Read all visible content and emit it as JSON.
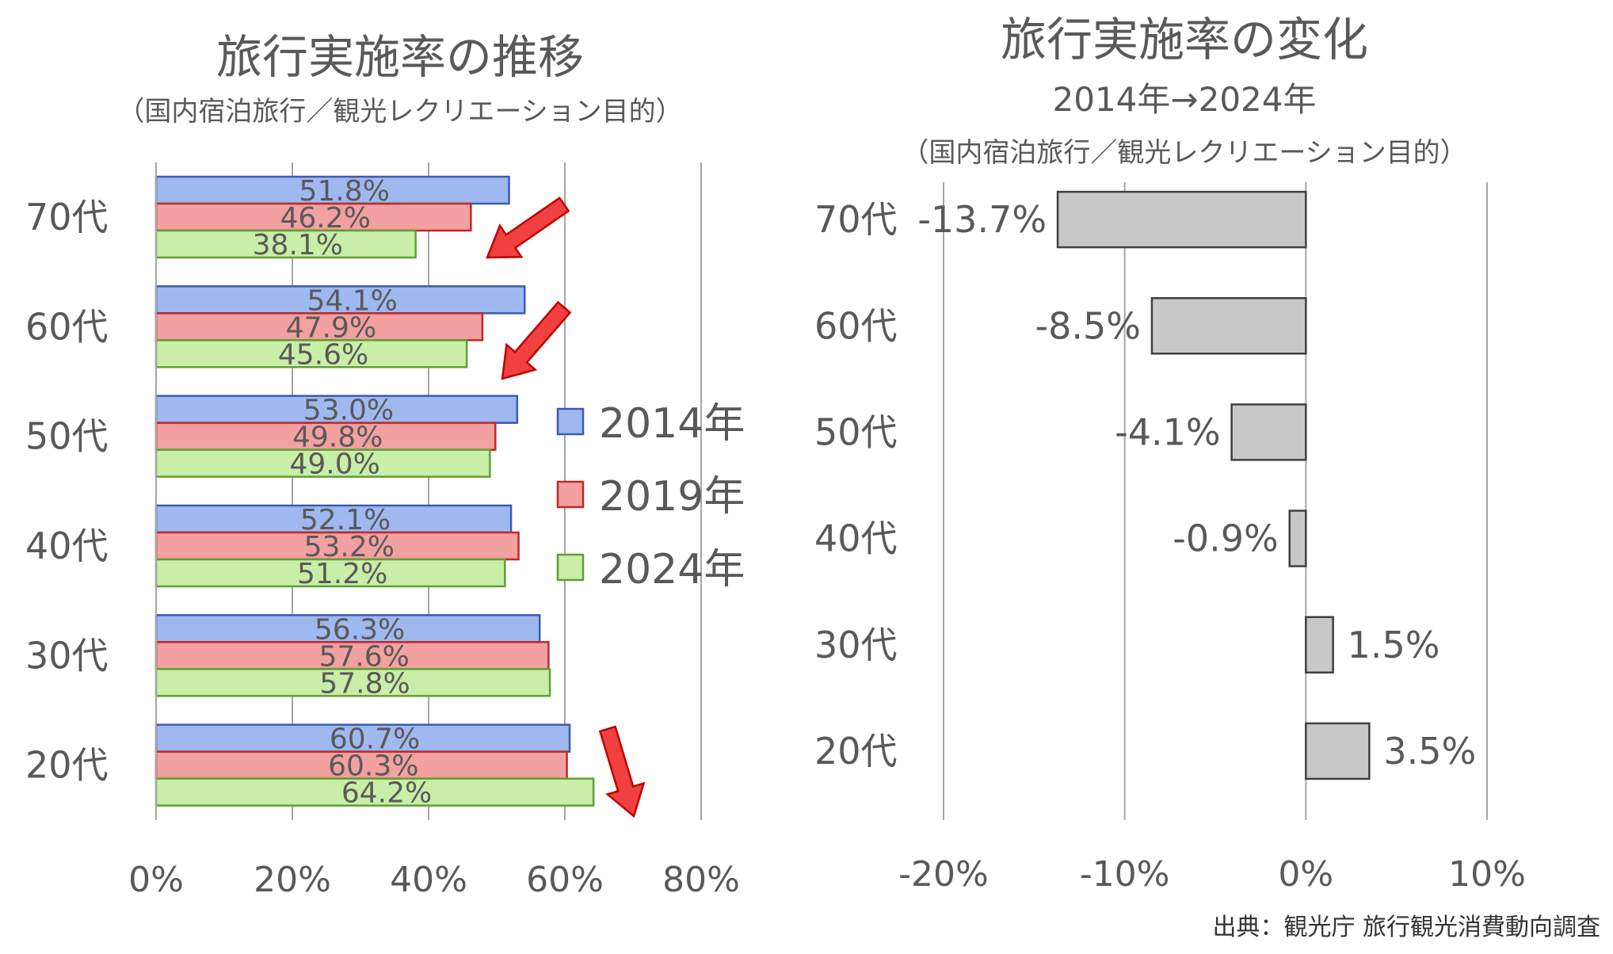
{
  "left_chart": {
    "title": "旅行実施率の推移",
    "subtitle": "（国内宿泊旅行／観光レクリエーション目的）"
  },
  "right_chart": {
    "title": "旅行実施率の変化",
    "subtitle1": "2014年→2024年",
    "subtitle2": "（国内宿泊旅行／観光レクリエーション目的）"
  },
  "source": "出典：観光庁 旅行観光消費動向調査",
  "colors": {
    "series_2014": "#9fb8f0",
    "series_2014_border": "#3a5bb0",
    "series_2019": "#f2a0a0",
    "series_2019_border": "#c02828",
    "series_2024": "#c9eea8",
    "series_2024_border": "#5fa035",
    "change_bar": "#c8c8c8",
    "change_bar_border": "#404040",
    "arrow": "#f04040",
    "grid": "#a6a6a6",
    "text": "#595959"
  },
  "chart_data": [
    {
      "type": "bar",
      "orientation": "horizontal",
      "categories": [
        "70代",
        "60代",
        "50代",
        "40代",
        "30代",
        "20代"
      ],
      "series": [
        {
          "name": "2014年",
          "values": [
            51.8,
            54.1,
            53.0,
            52.1,
            56.3,
            60.7
          ],
          "labels": [
            "51.8%",
            "54.1%",
            "53.0%",
            "52.1%",
            "56.3%",
            "60.7%"
          ]
        },
        {
          "name": "2019年",
          "values": [
            46.2,
            47.9,
            49.8,
            53.2,
            57.6,
            60.3
          ],
          "labels": [
            "46.2%",
            "47.9%",
            "49.8%",
            "53.2%",
            "57.6%",
            "60.3%"
          ]
        },
        {
          "name": "2024年",
          "values": [
            38.1,
            45.6,
            49.0,
            51.2,
            57.8,
            64.2
          ],
          "labels": [
            "38.1%",
            "45.6%",
            "49.0%",
            "51.2%",
            "57.8%",
            "64.2%"
          ]
        }
      ],
      "x_ticks": [
        "0%",
        "20%",
        "40%",
        "60%",
        "80%"
      ],
      "xlim": [
        0,
        80
      ],
      "grid": true,
      "legend": "right",
      "arrows": [
        "down",
        "down",
        "down"
      ]
    },
    {
      "type": "bar",
      "orientation": "horizontal",
      "categories": [
        "70代",
        "60代",
        "50代",
        "40代",
        "30代",
        "20代"
      ],
      "values": [
        -13.7,
        -8.5,
        -4.1,
        -0.9,
        1.5,
        3.5
      ],
      "labels": [
        "-13.7%",
        "-8.5%",
        "-4.1%",
        "-0.9%",
        "1.5%",
        "3.5%"
      ],
      "x_ticks": [
        "-20%",
        "-10%",
        "0%",
        "10%"
      ],
      "xlim": [
        -20,
        10
      ],
      "grid": true
    }
  ]
}
